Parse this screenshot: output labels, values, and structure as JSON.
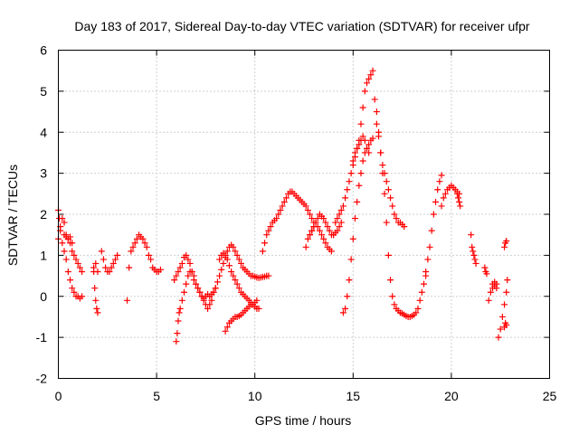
{
  "chart_data": {
    "type": "scatter",
    "title": "Day 183 of 2017, Sidereal Day-to-day VTEC variation (SDTVAR) for receiver ufpr",
    "xlabel": "GPS time / hours",
    "ylabel": "SDTVAR / TECUs",
    "xlim": [
      0,
      25
    ],
    "ylim": [
      -2,
      6
    ],
    "xticks": [
      "0",
      "5",
      "10",
      "15",
      "20",
      "25"
    ],
    "yticks": [
      "-2",
      "-1",
      "0",
      "1",
      "2",
      "3",
      "4",
      "5",
      "6"
    ],
    "grid": true,
    "marker": "+",
    "color": "#ff0000",
    "series": [
      {
        "name": "seg-a",
        "x": [
          0.0,
          0.1,
          0.2,
          0.3,
          0.4,
          0.5,
          0.6,
          0.7,
          0.8,
          0.9,
          1.0,
          1.1,
          1.2
        ],
        "y": [
          1.4,
          1.7,
          1.9,
          1.8,
          1.5,
          1.4,
          1.3,
          1.1,
          1.0,
          0.9,
          0.8,
          0.7,
          0.6
        ]
      },
      {
        "name": "seg-b",
        "x": [
          0.0,
          0.05,
          0.1,
          0.2,
          0.3,
          0.4,
          0.5,
          0.6,
          0.7,
          0.8,
          0.9,
          1.0,
          1.1,
          1.2
        ],
        "y": [
          2.1,
          1.9,
          1.6,
          1.3,
          1.1,
          0.9,
          0.6,
          0.4,
          0.2,
          0.1,
          0.0,
          0.0,
          -0.05,
          0.0
        ]
      },
      {
        "name": "seg-c",
        "x": [
          0.3,
          0.4,
          0.5,
          0.6,
          0.7
        ],
        "y": [
          1.5,
          1.45,
          1.4,
          1.45,
          1.3
        ]
      },
      {
        "name": "seg-d",
        "x": [
          1.8,
          1.85,
          1.9,
          1.95,
          2.0
        ],
        "y": [
          0.6,
          0.2,
          -0.1,
          -0.3,
          -0.4
        ]
      },
      {
        "name": "seg-e",
        "x": [
          1.8,
          1.9,
          2.0
        ],
        "y": [
          0.7,
          0.8,
          0.6
        ]
      },
      {
        "name": "seg-f",
        "x": [
          2.2,
          2.3,
          2.4,
          2.5,
          2.6,
          2.7,
          2.8,
          2.9,
          3.0
        ],
        "y": [
          1.1,
          0.9,
          0.7,
          0.6,
          0.6,
          0.7,
          0.8,
          0.9,
          1.0
        ]
      },
      {
        "name": "seg-g",
        "x": [
          3.5,
          3.6,
          3.7,
          3.8,
          3.9,
          4.0,
          4.1,
          4.2,
          4.3,
          4.4,
          4.5,
          4.6,
          4.7,
          4.8,
          4.9,
          5.0,
          5.1,
          5.2
        ],
        "y": [
          -0.1,
          0.7,
          1.1,
          1.2,
          1.3,
          1.4,
          1.5,
          1.45,
          1.4,
          1.3,
          1.2,
          1.0,
          0.9,
          0.7,
          0.65,
          0.6,
          0.6,
          0.65
        ]
      },
      {
        "name": "seg-h",
        "x": [
          6.0,
          6.05,
          6.1,
          6.15,
          6.2,
          6.3,
          6.4,
          6.5,
          6.6,
          6.7,
          6.8,
          6.9,
          7.0,
          7.1,
          7.2,
          7.3,
          7.4,
          7.5,
          7.6,
          7.7,
          7.8,
          7.9,
          8.0
        ],
        "y": [
          -1.1,
          -0.9,
          -0.6,
          -0.4,
          -0.3,
          -0.1,
          0.1,
          0.3,
          0.5,
          0.6,
          0.6,
          0.5,
          0.3,
          0.2,
          0.1,
          0.0,
          -0.05,
          0.0,
          0.05,
          0.0,
          0.05,
          0.1,
          0.2
        ]
      },
      {
        "name": "seg-i",
        "x": [
          5.9,
          6.0,
          6.1,
          6.2,
          6.3,
          6.4,
          6.5,
          6.6,
          6.7,
          6.8,
          6.9,
          7.0,
          7.1,
          7.2,
          7.3,
          7.4,
          7.5,
          7.6,
          7.7,
          7.8
        ],
        "y": [
          0.4,
          0.5,
          0.6,
          0.7,
          0.8,
          0.95,
          1.0,
          0.9,
          0.8,
          0.6,
          0.4,
          0.3,
          0.2,
          0.1,
          0.0,
          -0.1,
          -0.2,
          -0.3,
          -0.2,
          -0.1
        ]
      },
      {
        "name": "seg-j",
        "x": [
          7.9,
          8.0,
          8.1,
          8.2,
          8.3,
          8.4,
          8.5,
          8.6,
          8.7,
          8.8,
          8.9,
          9.0,
          9.1,
          9.2,
          9.3,
          9.4,
          9.5,
          9.6,
          9.7,
          9.8,
          9.9,
          10.0,
          10.1,
          10.2,
          10.3,
          10.4,
          10.5,
          10.6,
          10.7
        ],
        "y": [
          0.1,
          0.2,
          0.35,
          0.5,
          0.65,
          0.8,
          0.95,
          1.1,
          1.2,
          1.25,
          1.2,
          1.1,
          1.0,
          0.9,
          0.8,
          0.7,
          0.65,
          0.6,
          0.55,
          0.5,
          0.5,
          0.48,
          0.46,
          0.45,
          0.46,
          0.47,
          0.48,
          0.5,
          0.5
        ]
      },
      {
        "name": "seg-k",
        "x": [
          8.2,
          8.3,
          8.4,
          8.5,
          8.6,
          8.7,
          8.8,
          8.9,
          9.0,
          9.1,
          9.2,
          9.3,
          9.4,
          9.5,
          9.6,
          9.7,
          9.8,
          9.9,
          10.0,
          10.1,
          10.2
        ],
        "y": [
          0.9,
          1.0,
          1.05,
          1.0,
          0.9,
          0.75,
          0.6,
          0.5,
          0.4,
          0.3,
          0.2,
          0.1,
          0.05,
          0.0,
          -0.05,
          -0.1,
          -0.15,
          -0.2,
          -0.25,
          -0.3,
          -0.3
        ]
      },
      {
        "name": "seg-l",
        "x": [
          8.5,
          8.6,
          8.7,
          8.8,
          8.9,
          9.0,
          9.1,
          9.2,
          9.3,
          9.4,
          9.5,
          9.6,
          9.7,
          9.8,
          9.9,
          10.0,
          10.1
        ],
        "y": [
          -0.85,
          -0.75,
          -0.65,
          -0.6,
          -0.55,
          -0.5,
          -0.5,
          -0.48,
          -0.45,
          -0.4,
          -0.35,
          -0.3,
          -0.25,
          -0.2,
          -0.2,
          -0.15,
          -0.1
        ]
      },
      {
        "name": "seg-m",
        "x": [
          10.4,
          10.5,
          10.6,
          10.7,
          10.8,
          10.9,
          11.0,
          11.1,
          11.2,
          11.3,
          11.4,
          11.5,
          11.6,
          11.7,
          11.8,
          11.9,
          12.0,
          12.1,
          12.2,
          12.3,
          12.4,
          12.5,
          12.6,
          12.7,
          12.8,
          12.9,
          13.0
        ],
        "y": [
          1.1,
          1.3,
          1.5,
          1.6,
          1.7,
          1.8,
          1.85,
          1.9,
          2.0,
          2.1,
          2.2,
          2.3,
          2.4,
          2.5,
          2.55,
          2.55,
          2.5,
          2.45,
          2.4,
          2.35,
          2.3,
          2.25,
          2.2,
          2.1,
          2.0,
          1.9,
          1.8
        ]
      },
      {
        "name": "seg-n",
        "x": [
          12.6,
          12.7,
          12.8,
          12.9,
          13.0,
          13.1,
          13.2,
          13.3,
          13.4,
          13.5,
          13.6,
          13.7,
          13.8,
          13.9,
          14.0,
          14.1,
          14.2,
          14.3,
          14.4
        ],
        "y": [
          1.2,
          1.4,
          1.5,
          1.6,
          1.7,
          1.8,
          1.9,
          2.0,
          1.95,
          1.9,
          1.8,
          1.7,
          1.6,
          1.5,
          1.5,
          1.55,
          1.6,
          1.7,
          1.8
        ]
      },
      {
        "name": "seg-o",
        "x": [
          12.8,
          12.9,
          13.0,
          13.1,
          13.2,
          13.3,
          13.4,
          13.5,
          13.6,
          13.7,
          13.8,
          13.9,
          14.0,
          14.1,
          14.2,
          14.3,
          14.4,
          14.5,
          14.6,
          14.7,
          14.8,
          14.9,
          15.0,
          15.1,
          15.2,
          15.3,
          15.4,
          15.5,
          15.6,
          15.7,
          15.8,
          15.9,
          16.0
        ],
        "y": [
          1.5,
          1.6,
          1.7,
          1.8,
          1.7,
          1.6,
          1.5,
          1.4,
          1.3,
          1.2,
          1.15,
          1.1,
          1.5,
          1.8,
          1.9,
          2.0,
          2.1,
          2.2,
          2.4,
          2.6,
          2.8,
          3.0,
          3.2,
          3.4,
          3.6,
          3.8,
          4.2,
          4.6,
          5.0,
          5.2,
          5.3,
          5.4,
          5.5
        ]
      },
      {
        "name": "seg-p",
        "x": [
          14.5,
          14.6,
          14.7,
          14.8,
          14.9,
          15.0,
          15.1,
          15.2,
          15.3,
          15.4,
          15.5,
          15.6,
          15.7,
          15.8,
          15.9,
          16.0
        ],
        "y": [
          -0.4,
          -0.3,
          0.0,
          0.4,
          0.9,
          1.4,
          1.9,
          2.3,
          2.7,
          3.0,
          3.3,
          3.5,
          3.6,
          3.7,
          3.8,
          3.85
        ]
      },
      {
        "name": "seg-q",
        "x": [
          15.0,
          15.1,
          15.2,
          15.3,
          15.4,
          15.5,
          15.6,
          15.7,
          15.8
        ],
        "y": [
          3.3,
          3.5,
          3.6,
          3.7,
          3.8,
          3.9,
          3.8,
          3.6,
          3.5
        ]
      },
      {
        "name": "seg-r",
        "x": [
          16.1,
          16.2,
          16.3,
          16.4,
          16.5,
          16.6,
          16.7,
          16.8,
          16.9,
          17.0,
          17.1,
          17.2,
          17.3,
          17.4,
          17.5,
          17.6,
          17.7,
          17.8,
          17.9,
          18.0,
          18.1,
          18.2,
          18.3,
          18.4,
          18.5,
          18.6,
          18.7
        ],
        "y": [
          4.8,
          4.5,
          4.0,
          3.5,
          3.0,
          2.5,
          1.8,
          1.0,
          0.4,
          0.0,
          -0.2,
          -0.3,
          -0.35,
          -0.4,
          -0.42,
          -0.45,
          -0.48,
          -0.5,
          -0.5,
          -0.48,
          -0.45,
          -0.4,
          -0.3,
          -0.1,
          0.1,
          0.3,
          0.5
        ]
      },
      {
        "name": "seg-s",
        "x": [
          16.2,
          16.3,
          16.4,
          16.5,
          16.6,
          16.7,
          16.8,
          16.9,
          17.0,
          17.1,
          17.2,
          17.3,
          17.4,
          17.5,
          17.6
        ],
        "y": [
          4.2,
          3.9,
          3.5,
          3.2,
          3.0,
          2.8,
          2.6,
          2.4,
          2.2,
          2.0,
          1.9,
          1.8,
          1.8,
          1.75,
          1.7
        ]
      },
      {
        "name": "seg-t",
        "x": [
          18.7,
          18.8,
          18.9,
          19.0,
          19.1,
          19.2,
          19.3,
          19.4,
          19.5
        ],
        "y": [
          0.6,
          0.9,
          1.2,
          1.6,
          2.0,
          2.3,
          2.6,
          2.8,
          2.95
        ]
      },
      {
        "name": "seg-u",
        "x": [
          19.5,
          19.6,
          19.7,
          19.8,
          19.9,
          20.0,
          20.1,
          20.2,
          20.3,
          20.4
        ],
        "y": [
          2.2,
          2.4,
          2.5,
          2.6,
          2.65,
          2.7,
          2.65,
          2.6,
          2.55,
          2.5
        ]
      },
      {
        "name": "seg-v",
        "x": [
          20.3,
          20.35,
          20.4,
          20.45
        ],
        "y": [
          2.5,
          2.4,
          2.3,
          2.2
        ]
      },
      {
        "name": "seg-w",
        "x": [
          21.0,
          21.05,
          21.1,
          21.15,
          21.2,
          21.25
        ],
        "y": [
          1.5,
          1.2,
          1.1,
          1.0,
          0.9,
          0.8
        ]
      },
      {
        "name": "seg-x",
        "x": [
          21.7,
          21.75,
          21.8
        ],
        "y": [
          0.7,
          0.6,
          0.55
        ]
      },
      {
        "name": "seg-y",
        "x": [
          21.9,
          22.0,
          22.1,
          22.2,
          22.3
        ],
        "y": [
          -0.1,
          0.1,
          0.3,
          0.35,
          0.3
        ]
      },
      {
        "name": "seg-z",
        "x": [
          22.1,
          22.2,
          22.3
        ],
        "y": [
          0.2,
          0.25,
          0.2
        ]
      },
      {
        "name": "seg-aa",
        "x": [
          22.4,
          22.5,
          22.6,
          22.7,
          22.8,
          22.85
        ],
        "y": [
          -1.0,
          -0.8,
          -0.5,
          -0.2,
          0.1,
          0.4
        ]
      },
      {
        "name": "seg-ab",
        "x": [
          22.7,
          22.75,
          22.8
        ],
        "y": [
          -0.75,
          -0.65,
          -0.7
        ]
      },
      {
        "name": "seg-ac",
        "x": [
          22.7,
          22.75,
          22.8
        ],
        "y": [
          1.2,
          1.3,
          1.35
        ]
      }
    ]
  }
}
